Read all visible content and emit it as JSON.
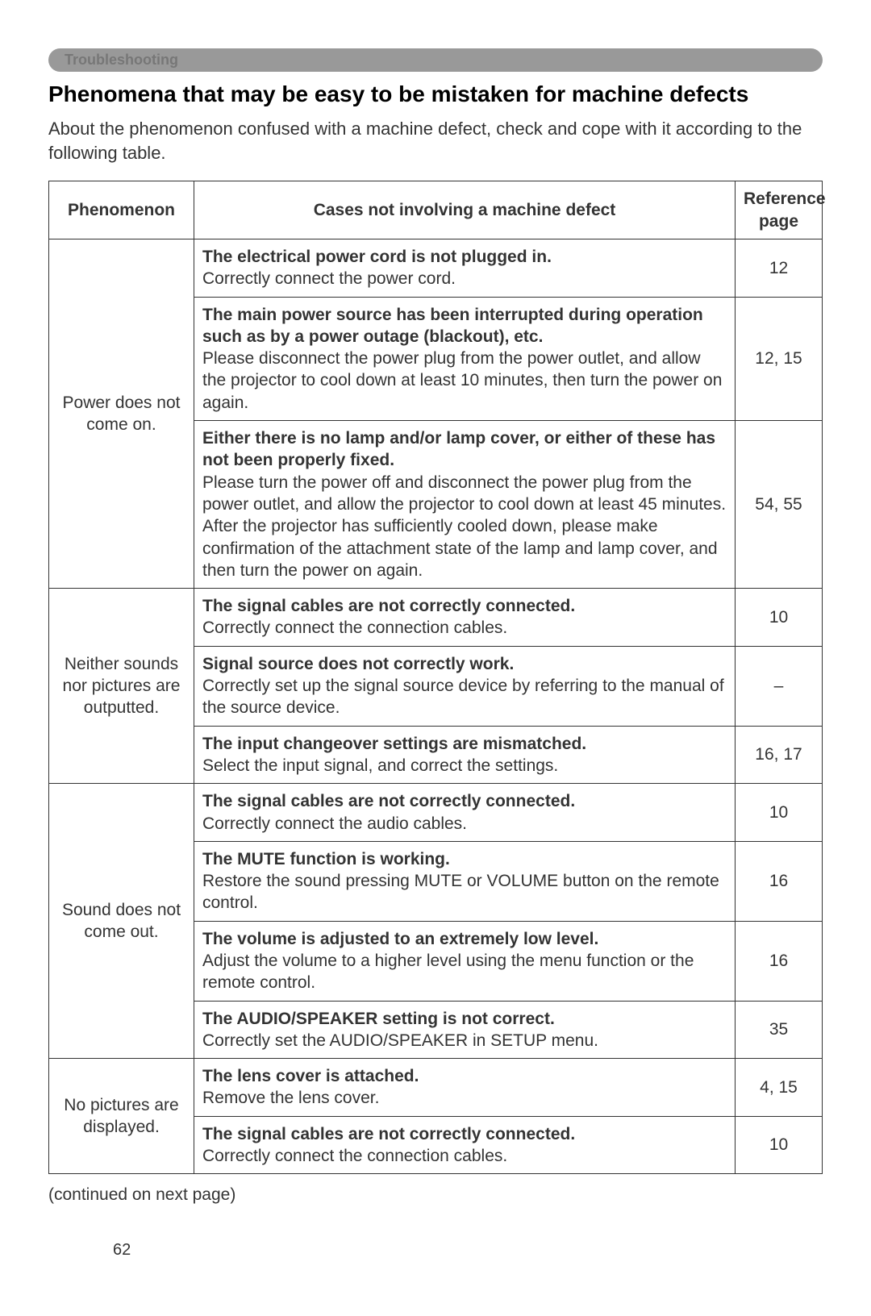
{
  "section_tab": "Troubleshooting",
  "heading": "Phenomena that may be easy to be mistaken for machine defects",
  "intro": "About the phenomenon confused with a machine defect, check and cope with it according to the following table.",
  "table": {
    "headers": {
      "phenomenon": "Phenomenon",
      "cases": "Cases not involving a machine defect",
      "page": "Reference page"
    },
    "groups": [
      {
        "phenomenon": "Power does not come on.",
        "rows": [
          {
            "bold": "The electrical power cord is not plugged in.",
            "desc": "Correctly connect the power cord.",
            "page": "12"
          },
          {
            "bold": "The main power source has been interrupted during operation such as by a power outage (blackout), etc.",
            "desc": "Please disconnect the power plug from the power outlet, and allow the projector to cool down at least 10 minutes, then turn the power on again.",
            "page": "12, 15"
          },
          {
            "bold": "Either there is no lamp and/or lamp cover, or either of these has not been properly fixed.",
            "desc": "Please turn the power off and disconnect the power plug from the power outlet, and allow the projector to cool down at least 45 minutes. After the projector has sufficiently cooled down, please make confirmation of the attachment state of the lamp and lamp cover, and then turn the power on again.",
            "page": "54, 55"
          }
        ]
      },
      {
        "phenomenon": "Neither sounds nor pictures are outputted.",
        "rows": [
          {
            "bold": "The signal cables are not correctly connected.",
            "desc": "Correctly connect the connection cables.",
            "page": "10"
          },
          {
            "bold": "Signal source does not correctly work.",
            "desc": "Correctly set up the signal source device by referring to the manual of the source device.",
            "page": "–"
          },
          {
            "bold": "The input changeover settings are mismatched.",
            "desc": "Select the input signal, and correct the settings.",
            "page": "16, 17"
          }
        ]
      },
      {
        "phenomenon": "Sound does not come out.",
        "rows": [
          {
            "bold": "The signal cables are not correctly connected.",
            "desc": "Correctly connect the audio cables.",
            "page": "10"
          },
          {
            "bold": "The MUTE function is working.",
            "desc": "Restore the sound pressing MUTE or VOLUME button on the remote control.",
            "page": "16"
          },
          {
            "bold": "The volume is adjusted to an extremely low level.",
            "desc": "Adjust the volume to a higher level using the menu function or the remote control.",
            "page": "16"
          },
          {
            "bold": "The AUDIO/SPEAKER setting is not correct.",
            "desc": "Correctly set the AUDIO/SPEAKER in SETUP menu.",
            "page": "35"
          }
        ]
      },
      {
        "phenomenon": "No pictures are displayed.",
        "rows": [
          {
            "bold": "The lens cover is attached.",
            "desc": "Remove the lens cover.",
            "page": "4, 15"
          },
          {
            "bold": "The signal cables are not correctly connected.",
            "desc": "Correctly connect the connection cables.",
            "page": "10"
          }
        ]
      }
    ]
  },
  "continued": "(continued on next page)",
  "page_number": "62",
  "colors": {
    "tab_bg": "#999999",
    "tab_text": "#777777",
    "heading_text": "#000000",
    "body_text": "#333333",
    "border": "#333333",
    "background": "#ffffff"
  },
  "fonts": {
    "heading_size_pt": 21,
    "body_size_pt": 16,
    "family": "Arial"
  }
}
